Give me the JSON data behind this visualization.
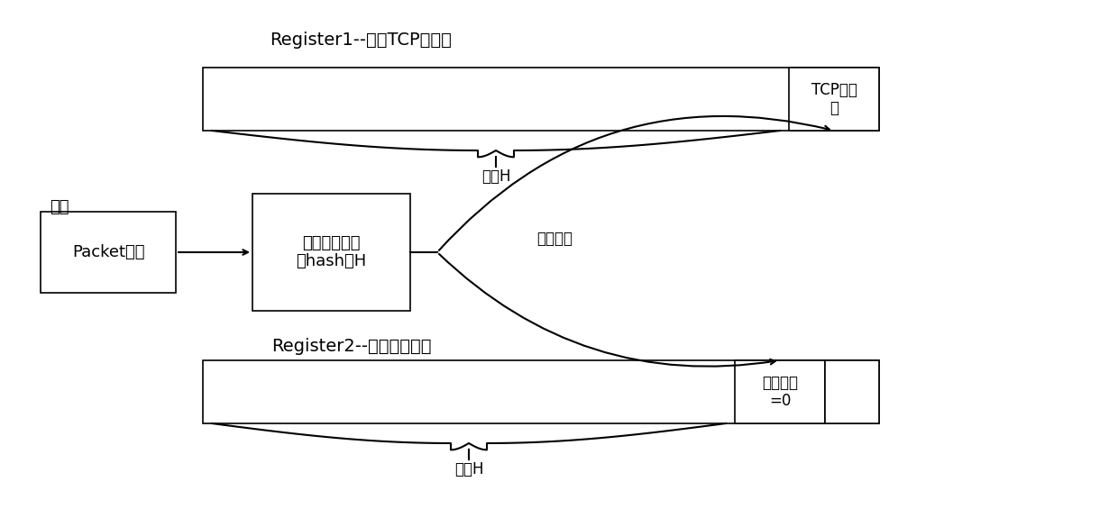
{
  "title": "Register1--存储TCP序列号",
  "title2": "Register2--存储重传次数",
  "label_xinliu": "新流",
  "label_packet": "Packet进入",
  "label_hash": "计算得到五元\n组hash值H",
  "label_tcp": "TCP序列\n号",
  "label_retrans": "重传次数\n=0",
  "label_store": "存储信息",
  "label_offset1": "偏移H",
  "label_offset2": "偏移H",
  "bg_color": "#ffffff",
  "box_edge_color": "#000000",
  "text_color": "#000000",
  "fontsize_title": 14,
  "fontsize_label": 13,
  "fontsize_small": 12
}
